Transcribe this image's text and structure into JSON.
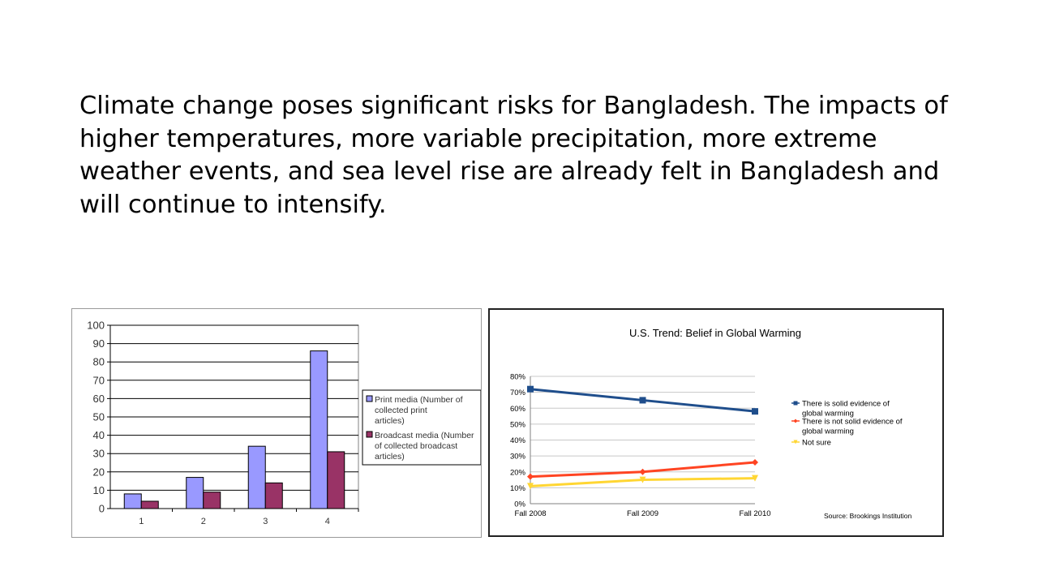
{
  "slide": {
    "body_text": "Climate change poses significant risks for Bangladesh. The impacts of higher temperatures, more variable precipitation, more extreme weather events, and sea level rise are already felt in Bangladesh and will continue to intensify."
  },
  "chart_data": [
    {
      "type": "bar",
      "title": "",
      "xlabel": "",
      "ylabel": "",
      "categories": [
        "1",
        "2",
        "3",
        "4"
      ],
      "ylim": [
        0,
        100
      ],
      "yticks": [
        0,
        10,
        20,
        30,
        40,
        50,
        60,
        70,
        80,
        90,
        100
      ],
      "grid": true,
      "legend_position": "right",
      "series": [
        {
          "name": "Print media (Number of collected print articles)",
          "values": [
            8,
            17,
            34,
            86
          ],
          "color": "#9999ff"
        },
        {
          "name": "Broadcast media (Number of collected broadcast articles)",
          "values": [
            4,
            9,
            14,
            31
          ],
          "color": "#993366"
        }
      ]
    },
    {
      "type": "line",
      "title": "U.S. Trend: Belief in Global Warming",
      "xlabel": "",
      "ylabel": "",
      "categories": [
        "Fall 2008",
        "Fall 2009",
        "Fall 2010"
      ],
      "ylim": [
        0,
        80
      ],
      "yticks": [
        "0%",
        "10%",
        "20%",
        "30%",
        "40%",
        "50%",
        "60%",
        "70%",
        "80%"
      ],
      "grid": true,
      "legend_position": "right",
      "source": "Source: Brookings Institution",
      "series": [
        {
          "name": "There is solid evidence of global warming",
          "values": [
            72,
            65,
            58
          ],
          "color": "#1f4e8c",
          "marker": "square"
        },
        {
          "name": "There is not solid evidence of global warming",
          "values": [
            17,
            20,
            26
          ],
          "color": "#ff4422",
          "marker": "diamond"
        },
        {
          "name": "Not sure",
          "values": [
            11,
            15,
            16
          ],
          "color": "#ffd633",
          "marker": "triangle"
        }
      ]
    }
  ]
}
